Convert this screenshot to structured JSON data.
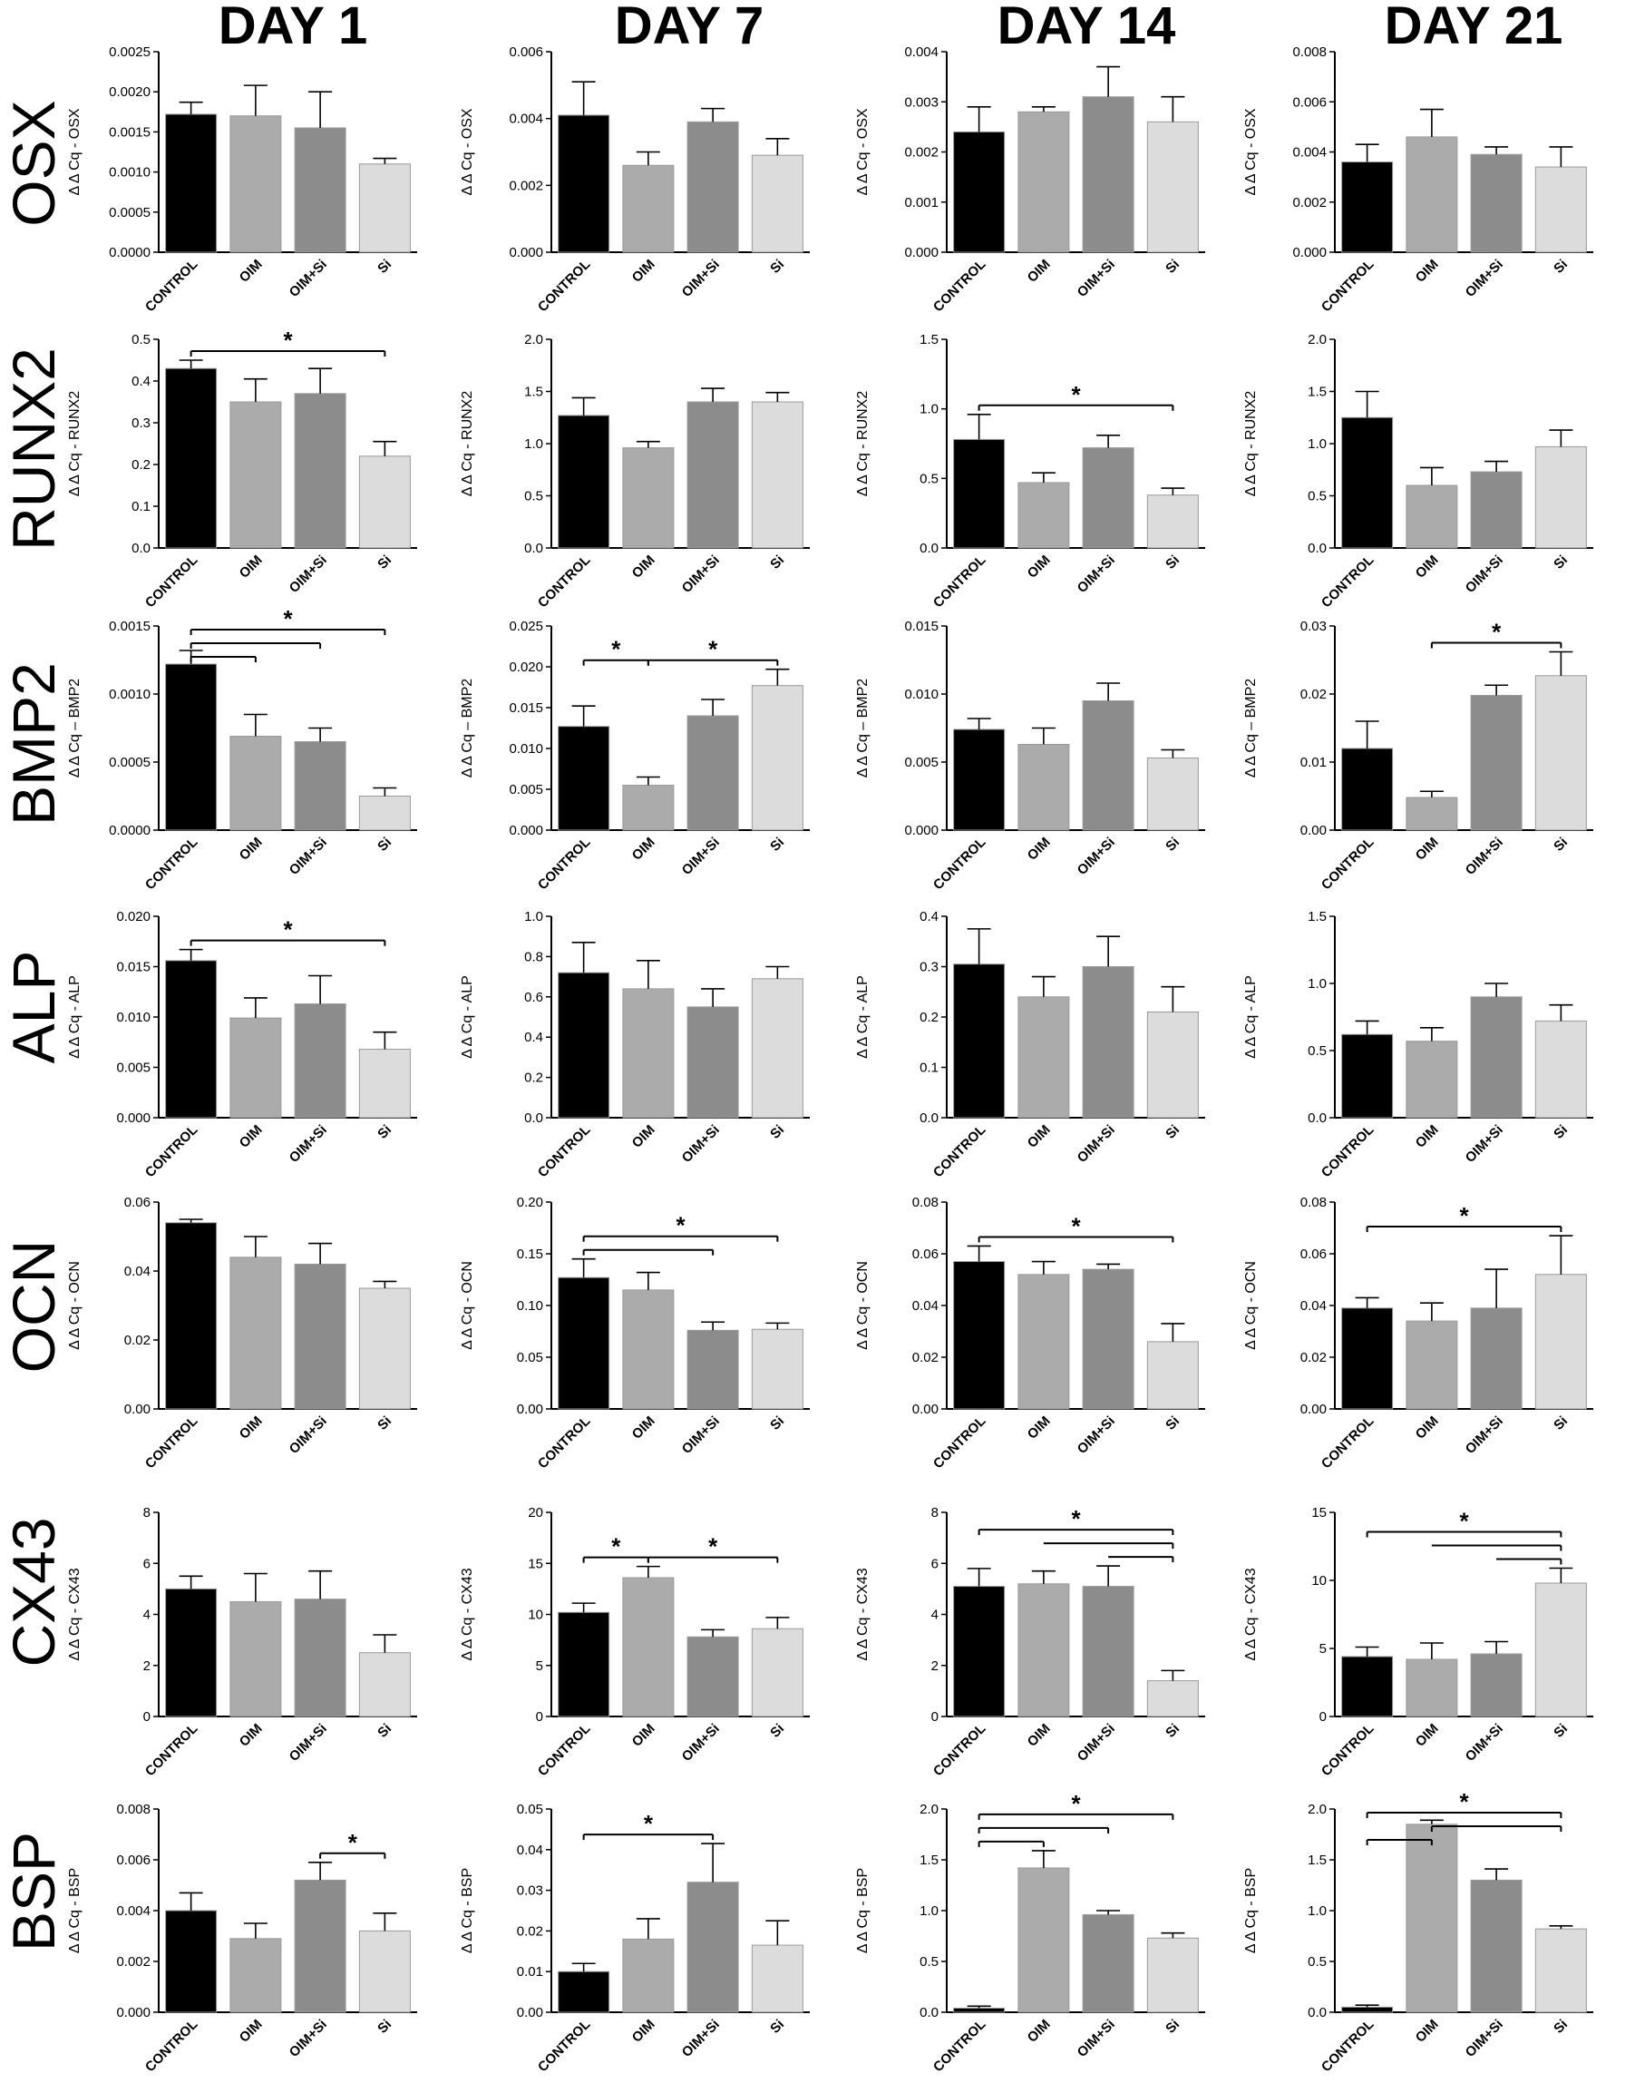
{
  "figure": {
    "days": [
      "DAY 1",
      "DAY 7",
      "DAY 14",
      "DAY 21"
    ],
    "genes": [
      "OSX",
      "RUNX2",
      "BMP2",
      "ALP",
      "OCN",
      "CX43",
      "BSP"
    ],
    "categories": [
      "CONTROL",
      "OIM",
      "OIM+Si",
      "Si"
    ],
    "bar_colors": [
      "#000000",
      "#ababab",
      "#8c8c8c",
      "#dcdcdc"
    ],
    "significance_marker": "*"
  },
  "chart_data": [
    {
      "type": "bar",
      "gene": "OSX",
      "day": "DAY 1",
      "ylabel": "Δ Δ Cq - OSX",
      "ylim": [
        0,
        0.0025
      ],
      "yticks": [
        "0.0000",
        "0.0005",
        "0.0010",
        "0.0015",
        "0.0020",
        "0.0025"
      ],
      "categories": [
        "CONTROL",
        "OIM",
        "OIM+Si",
        "Si"
      ],
      "values": [
        0.00172,
        0.0017,
        0.00155,
        0.0011
      ],
      "errors": [
        0.00015,
        0.00038,
        0.00045,
        7e-05
      ],
      "significance": []
    },
    {
      "type": "bar",
      "gene": "OSX",
      "day": "DAY 7",
      "ylabel": "Δ Δ Cq - OSX",
      "ylim": [
        0,
        0.006
      ],
      "yticks": [
        "0.000",
        "0.002",
        "0.004",
        "0.006"
      ],
      "categories": [
        "CONTROL",
        "OIM",
        "OIM+Si",
        "Si"
      ],
      "values": [
        0.0041,
        0.0026,
        0.0039,
        0.0029
      ],
      "errors": [
        0.001,
        0.0004,
        0.0004,
        0.0005
      ],
      "significance": []
    },
    {
      "type": "bar",
      "gene": "OSX",
      "day": "DAY 14",
      "ylabel": "Δ Δ Cq - OSX",
      "ylim": [
        0,
        0.004
      ],
      "yticks": [
        "0.000",
        "0.001",
        "0.002",
        "0.003",
        "0.004"
      ],
      "categories": [
        "CONTROL",
        "OIM",
        "OIM+Si",
        "Si"
      ],
      "values": [
        0.0024,
        0.0028,
        0.0031,
        0.0026
      ],
      "errors": [
        0.0005,
        0.0001,
        0.0006,
        0.0005
      ],
      "significance": []
    },
    {
      "type": "bar",
      "gene": "OSX",
      "day": "DAY 21",
      "ylabel": "Δ Δ Cq - OSX",
      "ylim": [
        0,
        0.008
      ],
      "yticks": [
        "0.000",
        "0.002",
        "0.004",
        "0.006",
        "0.008"
      ],
      "categories": [
        "CONTROL",
        "OIM",
        "OIM+Si",
        "Si"
      ],
      "values": [
        0.0036,
        0.0046,
        0.0039,
        0.0034
      ],
      "errors": [
        0.0007,
        0.0011,
        0.0003,
        0.0008
      ],
      "significance": []
    },
    {
      "type": "bar",
      "gene": "RUNX2",
      "day": "DAY 1",
      "ylabel": "Δ Δ Cq - RUNX2",
      "ylim": [
        0,
        0.5
      ],
      "yticks": [
        "0.0",
        "0.1",
        "0.2",
        "0.3",
        "0.4",
        "0.5"
      ],
      "categories": [
        "CONTROL",
        "OIM",
        "OIM+Si",
        "Si"
      ],
      "values": [
        0.43,
        0.35,
        0.37,
        0.22
      ],
      "errors": [
        0.02,
        0.055,
        0.06,
        0.035
      ],
      "significance": [
        {
          "from": 0,
          "to": 3,
          "level": 0,
          "ticks": "both",
          "star": true
        }
      ]
    },
    {
      "type": "bar",
      "gene": "RUNX2",
      "day": "DAY 7",
      "ylabel": "Δ Δ Cq - RUNX2",
      "ylim": [
        0,
        2.0
      ],
      "yticks": [
        "0.0",
        "0.5",
        "1.0",
        "1.5",
        "2.0"
      ],
      "categories": [
        "CONTROL",
        "OIM",
        "OIM+Si",
        "Si"
      ],
      "values": [
        1.27,
        0.96,
        1.4,
        1.4
      ],
      "errors": [
        0.17,
        0.06,
        0.13,
        0.09
      ],
      "significance": []
    },
    {
      "type": "bar",
      "gene": "RUNX2",
      "day": "DAY 14",
      "ylabel": "Δ Δ Cq - RUNX2",
      "ylim": [
        0,
        1.5
      ],
      "yticks": [
        "0.0",
        "0.5",
        "1.0",
        "1.5"
      ],
      "categories": [
        "CONTROL",
        "OIM",
        "OIM+Si",
        "Si"
      ],
      "values": [
        0.78,
        0.47,
        0.72,
        0.38
      ],
      "errors": [
        0.18,
        0.07,
        0.09,
        0.05
      ],
      "significance": [
        {
          "from": 0,
          "to": 3,
          "level": 0,
          "ticks": "both",
          "star": true
        }
      ]
    },
    {
      "type": "bar",
      "gene": "RUNX2",
      "day": "DAY 21",
      "ylabel": "Δ Δ Cq - RUNX2",
      "ylim": [
        0,
        2.0
      ],
      "yticks": [
        "0.0",
        "0.5",
        "1.0",
        "1.5",
        "2.0"
      ],
      "categories": [
        "CONTROL",
        "OIM",
        "OIM+Si",
        "Si"
      ],
      "values": [
        1.25,
        0.6,
        0.73,
        0.97
      ],
      "errors": [
        0.25,
        0.17,
        0.1,
        0.16
      ],
      "significance": []
    },
    {
      "type": "bar",
      "gene": "BMP2",
      "day": "DAY 1",
      "ylabel": "Δ Δ Cq – BMP2",
      "ylim": [
        0,
        0.0015
      ],
      "yticks": [
        "0.0000",
        "0.0005",
        "0.0010",
        "0.0015"
      ],
      "categories": [
        "CONTROL",
        "OIM",
        "OIM+Si",
        "Si"
      ],
      "values": [
        0.00122,
        0.00069,
        0.00065,
        0.00025
      ],
      "errors": [
        0.0001,
        0.00016,
        0.0001,
        6e-05
      ],
      "significance": [
        {
          "from": 0,
          "to": 1,
          "level": 0,
          "ticks": "both",
          "star": false
        },
        {
          "from": 0,
          "to": 2,
          "level": 1,
          "ticks": "both",
          "star": false
        },
        {
          "from": 0,
          "to": 3,
          "level": 2,
          "ticks": "both",
          "star": true
        }
      ]
    },
    {
      "type": "bar",
      "gene": "BMP2",
      "day": "DAY 7",
      "ylabel": "Δ Δ Cq – BMP2",
      "ylim": [
        0,
        0.025
      ],
      "yticks": [
        "0.000",
        "0.005",
        "0.010",
        "0.015",
        "0.020",
        "0.025"
      ],
      "categories": [
        "CONTROL",
        "OIM",
        "OIM+Si",
        "Si"
      ],
      "values": [
        0.0127,
        0.0055,
        0.014,
        0.0177
      ],
      "errors": [
        0.0025,
        0.001,
        0.002,
        0.002
      ],
      "significance": [
        {
          "from": 0,
          "to": 1,
          "level": 0,
          "ticks": "both",
          "star": true
        },
        {
          "from": 1,
          "to": 3,
          "level": 0,
          "ticks": "both",
          "star": true
        }
      ]
    },
    {
      "type": "bar",
      "gene": "BMP2",
      "day": "DAY 14",
      "ylabel": "Δ Δ Cq – BMP2",
      "ylim": [
        0,
        0.015
      ],
      "yticks": [
        "0.000",
        "0.005",
        "0.010",
        "0.015"
      ],
      "categories": [
        "CONTROL",
        "OIM",
        "OIM+Si",
        "Si"
      ],
      "values": [
        0.0074,
        0.0063,
        0.0095,
        0.0053
      ],
      "errors": [
        0.0008,
        0.0012,
        0.0013,
        0.0006
      ],
      "significance": []
    },
    {
      "type": "bar",
      "gene": "BMP2",
      "day": "DAY 21",
      "ylabel": "Δ Δ Cq – BMP2",
      "ylim": [
        0,
        0.03
      ],
      "yticks": [
        "0.00",
        "0.01",
        "0.02",
        "0.03"
      ],
      "categories": [
        "CONTROL",
        "OIM",
        "OIM+Si",
        "Si"
      ],
      "values": [
        0.012,
        0.0048,
        0.0198,
        0.0227
      ],
      "errors": [
        0.004,
        0.0009,
        0.0015,
        0.0035
      ],
      "significance": [
        {
          "from": 1,
          "to": 3,
          "level": 0,
          "ticks": "both",
          "star": true
        }
      ]
    },
    {
      "type": "bar",
      "gene": "ALP",
      "day": "DAY 1",
      "ylabel": "Δ Δ Cq - ALP",
      "ylim": [
        0,
        0.02
      ],
      "yticks": [
        "0.000",
        "0.005",
        "0.010",
        "0.015",
        "0.020"
      ],
      "categories": [
        "CONTROL",
        "OIM",
        "OIM+Si",
        "Si"
      ],
      "values": [
        0.0156,
        0.0099,
        0.0113,
        0.0068
      ],
      "errors": [
        0.0011,
        0.002,
        0.0028,
        0.0017
      ],
      "significance": [
        {
          "from": 0,
          "to": 3,
          "level": 0,
          "ticks": "both",
          "star": true
        }
      ]
    },
    {
      "type": "bar",
      "gene": "ALP",
      "day": "DAY 7",
      "ylabel": "Δ Δ Cq - ALP",
      "ylim": [
        0,
        1.0
      ],
      "yticks": [
        "0.0",
        "0.2",
        "0.4",
        "0.6",
        "0.8",
        "1.0"
      ],
      "categories": [
        "CONTROL",
        "OIM",
        "OIM+Si",
        "Si"
      ],
      "values": [
        0.72,
        0.64,
        0.55,
        0.69
      ],
      "errors": [
        0.15,
        0.14,
        0.09,
        0.06
      ],
      "significance": []
    },
    {
      "type": "bar",
      "gene": "ALP",
      "day": "DAY 14",
      "ylabel": "Δ Δ Cq - ALP",
      "ylim": [
        0,
        0.4
      ],
      "yticks": [
        "0.0",
        "0.1",
        "0.2",
        "0.3",
        "0.4"
      ],
      "categories": [
        "CONTROL",
        "OIM",
        "OIM+Si",
        "Si"
      ],
      "values": [
        0.305,
        0.24,
        0.3,
        0.21
      ],
      "errors": [
        0.07,
        0.04,
        0.06,
        0.05
      ],
      "significance": []
    },
    {
      "type": "bar",
      "gene": "ALP",
      "day": "DAY 21",
      "ylabel": "Δ Δ Cq - ALP",
      "ylim": [
        0,
        1.5
      ],
      "yticks": [
        "0.0",
        "0.5",
        "1.0",
        "1.5"
      ],
      "categories": [
        "CONTROL",
        "OIM",
        "OIM+Si",
        "Si"
      ],
      "values": [
        0.62,
        0.57,
        0.9,
        0.72
      ],
      "errors": [
        0.1,
        0.1,
        0.1,
        0.12
      ],
      "significance": []
    },
    {
      "type": "bar",
      "gene": "OCN",
      "day": "DAY 1",
      "ylabel": "Δ Δ Cq - OCN",
      "ylim": [
        0,
        0.06
      ],
      "yticks": [
        "0.00",
        "0.02",
        "0.04",
        "0.06"
      ],
      "categories": [
        "CONTROL",
        "OIM",
        "OIM+Si",
        "Si"
      ],
      "values": [
        0.054,
        0.044,
        0.042,
        0.035
      ],
      "errors": [
        0.001,
        0.006,
        0.006,
        0.002
      ],
      "significance": []
    },
    {
      "type": "bar",
      "gene": "OCN",
      "day": "DAY 7",
      "ylabel": "Δ Δ Cq - OCN",
      "ylim": [
        0,
        0.2
      ],
      "yticks": [
        "0.00",
        "0.05",
        "0.10",
        "0.15",
        "0.20"
      ],
      "categories": [
        "CONTROL",
        "OIM",
        "OIM+Si",
        "Si"
      ],
      "values": [
        0.127,
        0.115,
        0.076,
        0.077
      ],
      "errors": [
        0.018,
        0.017,
        0.008,
        0.006
      ],
      "significance": [
        {
          "from": 0,
          "to": 2,
          "level": 0,
          "ticks": "both",
          "star": false
        },
        {
          "from": 0,
          "to": 3,
          "level": 1,
          "ticks": "both",
          "star": true
        }
      ]
    },
    {
      "type": "bar",
      "gene": "OCN",
      "day": "DAY 14",
      "ylabel": "Δ Δ Cq - OCN",
      "ylim": [
        0,
        0.08
      ],
      "yticks": [
        "0.00",
        "0.02",
        "0.04",
        "0.06",
        "0.08"
      ],
      "categories": [
        "CONTROL",
        "OIM",
        "OIM+Si",
        "Si"
      ],
      "values": [
        0.057,
        0.052,
        0.054,
        0.026
      ],
      "errors": [
        0.006,
        0.005,
        0.002,
        0.007
      ],
      "significance": [
        {
          "from": 0,
          "to": 3,
          "level": 0,
          "ticks": "both",
          "star": true
        }
      ]
    },
    {
      "type": "bar",
      "gene": "OCN",
      "day": "DAY 21",
      "ylabel": "Δ Δ Cq - OCN",
      "ylim": [
        0,
        0.08
      ],
      "yticks": [
        "0.00",
        "0.02",
        "0.04",
        "0.06",
        "0.08"
      ],
      "categories": [
        "CONTROL",
        "OIM",
        "OIM+Si",
        "Si"
      ],
      "values": [
        0.039,
        0.034,
        0.039,
        0.052
      ],
      "errors": [
        0.004,
        0.007,
        0.015,
        0.015
      ],
      "significance": [
        {
          "from": 0,
          "to": 3,
          "level": 0,
          "ticks": "both",
          "star": true
        }
      ]
    },
    {
      "type": "bar",
      "gene": "CX43",
      "day": "DAY 1",
      "ylabel": "Δ Δ Cq - CX43",
      "ylim": [
        0,
        8
      ],
      "yticks": [
        "0",
        "2",
        "4",
        "6",
        "8"
      ],
      "categories": [
        "CONTROL",
        "OIM",
        "OIM+Si",
        "Si"
      ],
      "values": [
        5.0,
        4.5,
        4.6,
        2.5
      ],
      "errors": [
        0.5,
        1.1,
        1.1,
        0.7
      ],
      "significance": []
    },
    {
      "type": "bar",
      "gene": "CX43",
      "day": "DAY 7",
      "ylabel": "Δ Δ Cq - CX43",
      "ylim": [
        0,
        20
      ],
      "yticks": [
        "0",
        "5",
        "10",
        "15",
        "20"
      ],
      "categories": [
        "CONTROL",
        "OIM",
        "OIM+Si",
        "Si"
      ],
      "values": [
        10.2,
        13.6,
        7.8,
        8.6
      ],
      "errors": [
        0.9,
        1.1,
        0.7,
        1.1
      ],
      "significance": [
        {
          "from": 0,
          "to": 1,
          "level": 0,
          "ticks": "both",
          "star": true
        },
        {
          "from": 1,
          "to": 3,
          "level": 0,
          "ticks": "both",
          "star": true
        }
      ]
    },
    {
      "type": "bar",
      "gene": "CX43",
      "day": "DAY 14",
      "ylabel": "Δ Δ Cq - CX43",
      "ylim": [
        0,
        8
      ],
      "yticks": [
        "0",
        "2",
        "4",
        "6",
        "8"
      ],
      "categories": [
        "CONTROL",
        "OIM",
        "OIM+Si",
        "Si"
      ],
      "values": [
        5.1,
        5.2,
        5.1,
        1.4
      ],
      "errors": [
        0.7,
        0.5,
        0.8,
        0.4
      ],
      "significance": [
        {
          "from": 0,
          "to": 3,
          "level": 2,
          "ticks": "both",
          "star": true
        },
        {
          "from": 1,
          "to": 3,
          "level": 1,
          "ticks": "end",
          "star": false
        },
        {
          "from": 2,
          "to": 3,
          "level": 0,
          "ticks": "end",
          "star": false
        }
      ]
    },
    {
      "type": "bar",
      "gene": "CX43",
      "day": "DAY 21",
      "ylabel": "Δ Δ Cq - CX43",
      "ylim": [
        0,
        15
      ],
      "yticks": [
        "0",
        "5",
        "10",
        "15"
      ],
      "categories": [
        "CONTROL",
        "OIM",
        "OIM+Si",
        "Si"
      ],
      "values": [
        4.4,
        4.2,
        4.6,
        9.8
      ],
      "errors": [
        0.7,
        1.2,
        0.9,
        1.1
      ],
      "significance": [
        {
          "from": 0,
          "to": 3,
          "level": 2,
          "ticks": "both",
          "star": true
        },
        {
          "from": 1,
          "to": 3,
          "level": 1,
          "ticks": "end",
          "star": false
        },
        {
          "from": 2,
          "to": 3,
          "level": 0,
          "ticks": "end",
          "star": false
        }
      ]
    },
    {
      "type": "bar",
      "gene": "BSP",
      "day": "DAY 1",
      "ylabel": "Δ Δ Cq - BSP",
      "ylim": [
        0,
        0.008
      ],
      "yticks": [
        "0.000",
        "0.002",
        "0.004",
        "0.006",
        "0.008"
      ],
      "categories": [
        "CONTROL",
        "OIM",
        "OIM+Si",
        "Si"
      ],
      "values": [
        0.004,
        0.0029,
        0.0052,
        0.0032
      ],
      "errors": [
        0.0007,
        0.0006,
        0.0007,
        0.0007
      ],
      "significance": [
        {
          "from": 2,
          "to": 3,
          "level": 0,
          "ticks": "both",
          "star": true
        }
      ]
    },
    {
      "type": "bar",
      "gene": "BSP",
      "day": "DAY 7",
      "ylabel": "Δ Δ Cq - BSP",
      "ylim": [
        0,
        0.05
      ],
      "yticks": [
        "0.00",
        "0.01",
        "0.02",
        "0.03",
        "0.04",
        "0.05"
      ],
      "categories": [
        "CONTROL",
        "OIM",
        "OIM+Si",
        "Si"
      ],
      "values": [
        0.01,
        0.018,
        0.032,
        0.0165
      ],
      "errors": [
        0.002,
        0.005,
        0.0095,
        0.006
      ],
      "significance": [
        {
          "from": 0,
          "to": 2,
          "level": 0,
          "ticks": "both",
          "star": true
        }
      ]
    },
    {
      "type": "bar",
      "gene": "BSP",
      "day": "DAY 14",
      "ylabel": "Δ Δ Cq - BSP",
      "ylim": [
        0,
        2.0
      ],
      "yticks": [
        "0.0",
        "0.5",
        "1.0",
        "1.5",
        "2.0"
      ],
      "categories": [
        "CONTROL",
        "OIM",
        "OIM+Si",
        "Si"
      ],
      "values": [
        0.04,
        1.42,
        0.96,
        0.73
      ],
      "errors": [
        0.02,
        0.17,
        0.04,
        0.05
      ],
      "significance": [
        {
          "from": 0,
          "to": 1,
          "level": 0,
          "ticks": "both",
          "star": false
        },
        {
          "from": 0,
          "to": 2,
          "level": 1,
          "ticks": "both",
          "star": false
        },
        {
          "from": 0,
          "to": 3,
          "level": 2,
          "ticks": "both",
          "star": true
        }
      ]
    },
    {
      "type": "bar",
      "gene": "BSP",
      "day": "DAY 21",
      "ylabel": "Δ Δ Cq - BSP",
      "ylim": [
        0,
        2.0
      ],
      "yticks": [
        "0.0",
        "0.5",
        "1.0",
        "1.5",
        "2.0"
      ],
      "categories": [
        "CONTROL",
        "OIM",
        "OIM+Si",
        "Si"
      ],
      "values": [
        0.05,
        1.85,
        1.3,
        0.82
      ],
      "errors": [
        0.02,
        0.04,
        0.11,
        0.03
      ],
      "significance": [
        {
          "from": 0,
          "to": 1,
          "level": 0,
          "ticks": "both",
          "star": false
        },
        {
          "from": 0,
          "to": 3,
          "level": 2,
          "ticks": "both",
          "star": true
        },
        {
          "from": 1,
          "to": 3,
          "level": 1,
          "ticks": "both",
          "star": false
        }
      ]
    }
  ]
}
